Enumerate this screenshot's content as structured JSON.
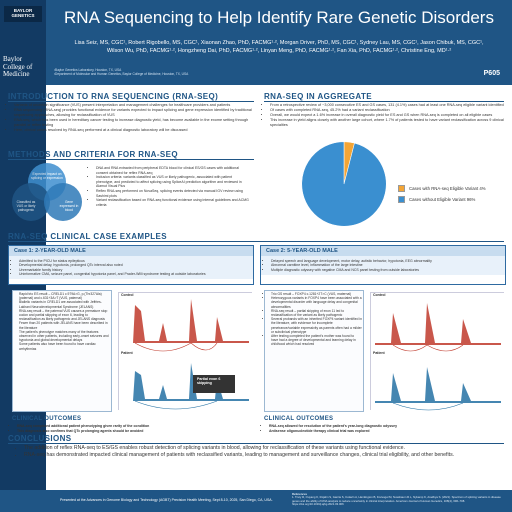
{
  "branding": {
    "logo_top_line1": "BAYLOR",
    "logo_top_line2": "GENETICS",
    "logo_side": "Baylor College of Medicine"
  },
  "header": {
    "title": "RNA Sequencing to Help Identify Rare Genetic Disorders",
    "authors_line1": "Lisa Seiz, MS, CGC¹, Robert Rigobello, MS, CGC¹, Xiaonan Zhao, PhD, FACMG¹·², Morgan Driver, PhD, MS, CGC¹, Sydney Lau, MS, CGC¹, Jason Chibuk, MS, CGC¹,",
    "authors_line2": "Wilson Wu, PhD, FACMG¹·², Hongzheng Dai, PhD, FACMG¹·², Linyan Meng, PhD, FACMG¹·², Fan Xia, PhD, FACMG¹·², Christine Eng, MD¹·²",
    "affiliation1": "¹Baylor Genetics Laboratory, Houston, TX, USA",
    "affiliation2": "²Department of Molecular and Human Genetics, Baylor College of Medicine, Houston, TX, USA",
    "poster_code": "P605"
  },
  "intro": {
    "title": "INTRODUCTION TO RNA SEQUENCING (RNA-SEQ)",
    "bullets": [
      "Variants of uncertain significance (VUS) present interpretation and management challenges for healthcare providers and patients",
      "RNA sequencing (RNA-seq) provides functional evidence for variants expected to impact splicing and gene expression identified by traditional sequencing approaches, allowing for reclassification of VUS",
      "RNA-seq, which has been used in hereditary cancer testing to increase diagnostic yield, has become available in the exome setting through parallel or reflex testing",
      "Here, clinical cases resolved by RNA-seq performed at a clinical diagnostic laboratory will be discussed"
    ]
  },
  "methods": {
    "title": "METHODS AND CRITERIA FOR RNA-SEQ",
    "venn_top": "Expected impact on splicing or expression",
    "venn_left": "Classified as VUS or likely pathogenic",
    "venn_right": "Gene expressed in blood",
    "venn_center": "Eligible variant",
    "bullets": [
      "DNA and RNA extracted from peripheral EDTA blood for clinical ES/GS cases with additional consent obtained for reflex RNA-seq",
      "Inclusion criteria: variants classified as VUS or likely pathogenic, associated with patient phenotype, and predicted to affect splicing using SpliceAI prediction algorithm and reviewed in Alamut Visual Plus",
      "Reflex RNA-seq performed on NovaSeq, splicing events detected via manual IGV review using Sashimi plots",
      "Variant reclassification based on RNA-seq functional evidence using internal guidelines and ACMG criteria"
    ]
  },
  "aggregate": {
    "title": "RNA-SEQ IN AGGREGATE",
    "bullets": [
      "From a retrospective review of ~3,000 consecutive ES and GS cases, 131 (4.1%) cases had at least one RNA-seq eligible variant identified",
      "Of cases with completed RNA-seq, 45.2% had a variant reclassification",
      "Overall, we would expect a 1.6% increase in overall diagnostic yield for ES and GS when RNA-seq is completed on all eligible cases",
      "This increase in yield aligns closely with another large cohort, where 1.7% of patients tested to have variant reclassification across 9 clinical specialties"
    ]
  },
  "chart_data": {
    "type": "pie",
    "categories": [
      "Cases with RNA-seq Eligible Variant",
      "Cases without Eligible Variant"
    ],
    "values": [
      4,
      96
    ],
    "colors": [
      "#f4a535",
      "#3a8fd0"
    ],
    "legend": [
      "Cases with RNA-seq Eligible Variant 4%",
      "Cases without Eligible Variant 96%"
    ],
    "legend_position": "right"
  },
  "cases": {
    "title": "RNA-SEQ CLINICAL CASE EXAMPLES",
    "case1": {
      "header": "Case 1: 2-YEAR-OLD MALE",
      "bullets": [
        "Admitted to the PICU for status epilepticus",
        "Developmental delay, hypotonia, prolonged QTc interval also noted",
        "Unremarkable family history",
        "Uninformative CMA, seizure panel, congenital hypotonia panel, and Prader-Willi syndrome testing at outside laboratories"
      ],
      "details": [
        "Rapid trio ES result – CRELD1 c.979A>G, p.(Thr327Ala) (paternal) and c.631+3A>T (VUS, paternal)",
        "Biallelic variants in CRELD1 are associated with Jeffries-Lakhani Neurodevelopmental Syndrome (JELANS)",
        "RNA-seq result – the paternal VUS causes a premature stop codon and partial skipping of exon 6, leading to reclassification as likely pathogenic and JELANS diagnosis",
        "Fewer than 20 patients with JELANS have been described in the literature",
        "The patient's phenotype matches many of the features observed in other patients, including early-onset seizures and hypotonia and global developmental delays",
        "Some patients also have been found to have cardiac arrhythmias"
      ],
      "plot_label_control": "Control",
      "plot_label_patient": "Patient",
      "plot_annotation": "Partial exon 6 skipping",
      "outcomes_title": "CLINICAL OUTCOMES",
      "outcomes": [
        "RNA-seq completed additional patient phenotyping given rarity of the condition",
        "This diagnosis also confirms that QTc prolonging agents should be avoided"
      ]
    },
    "case2": {
      "header": "Case 2: 5-YEAR-OLD MALE",
      "bullets": [
        "Delayed speech and language development, motor delay, autistic behavior, hypotonia, EEG abnormality",
        "Abnormal carnitine level, inflammation of the large intestine",
        "Multiple diagnostic odyssey with negative CMA and NCS panel testing from outside laboratories"
      ],
      "details": [
        "Trio GS result – FOXP4 c.1281+2T>C (VUS, maternal)",
        "Heterozygous variants in FOXP4 have been associated with a developmental disorder with language delay and congenital abnormalities",
        "RNA-seq result – partial skipping of exon 11 led to reclassification of the variant as likely pathogenic",
        "Several probands with an inherited FOXP4 variant identified in the literature, with evidence for incomplete penetrance/variable expressivity as parents often had a milder or subclinical phenotype",
        "After testing completed the patient's mother was found to have had a degree of developmental and learning delay in childhood which had resolved"
      ],
      "plot_label_control": "Control",
      "plot_label_patient": "Patient",
      "outcomes_title": "CLINICAL OUTCOMES",
      "outcomes": [
        "RNA-seq allowed for resolution of the patient's year-long diagnostic odyssey",
        "Antisense oligonucleotide therapy clinical trial was explored"
      ]
    }
  },
  "conclusions": {
    "title": "CONCLUSIONS",
    "bullets": [
      "The addition of reflex RNA-seq to ES/GS enables robust detection of splicing variants in blood, allowing for reclassification of these variants using functional evidence.",
      "RNA-seq has demonstrated impacted clinical management of patients with reclassified variants, leading to management and surveillance changes, clinical trial eligibility, and other benefits."
    ]
  },
  "footer": {
    "note": "Presented at the Advances in Genome Biology and Technology (AGBT) Precision Health Meeting, Sept 8-10, 2025, San Diego, CA, USA.",
    "references_title": "References",
    "references": "1. Truty R, Ouyang K, Rojahn S, Garcia S, Colavin A, Hamlington B, Freivogel M, Nussbaum R.L, Nykamp K, Aradhya S. (2021). Spectrum of splicing variants in disease genes and the ability of RNA analysis to reduce uncertainty in clinical interpretation. American Journal of Human Genetics, 108(4), 696–708. https://doi.org/10.1016/j.ajhg.2021.03.006"
  }
}
